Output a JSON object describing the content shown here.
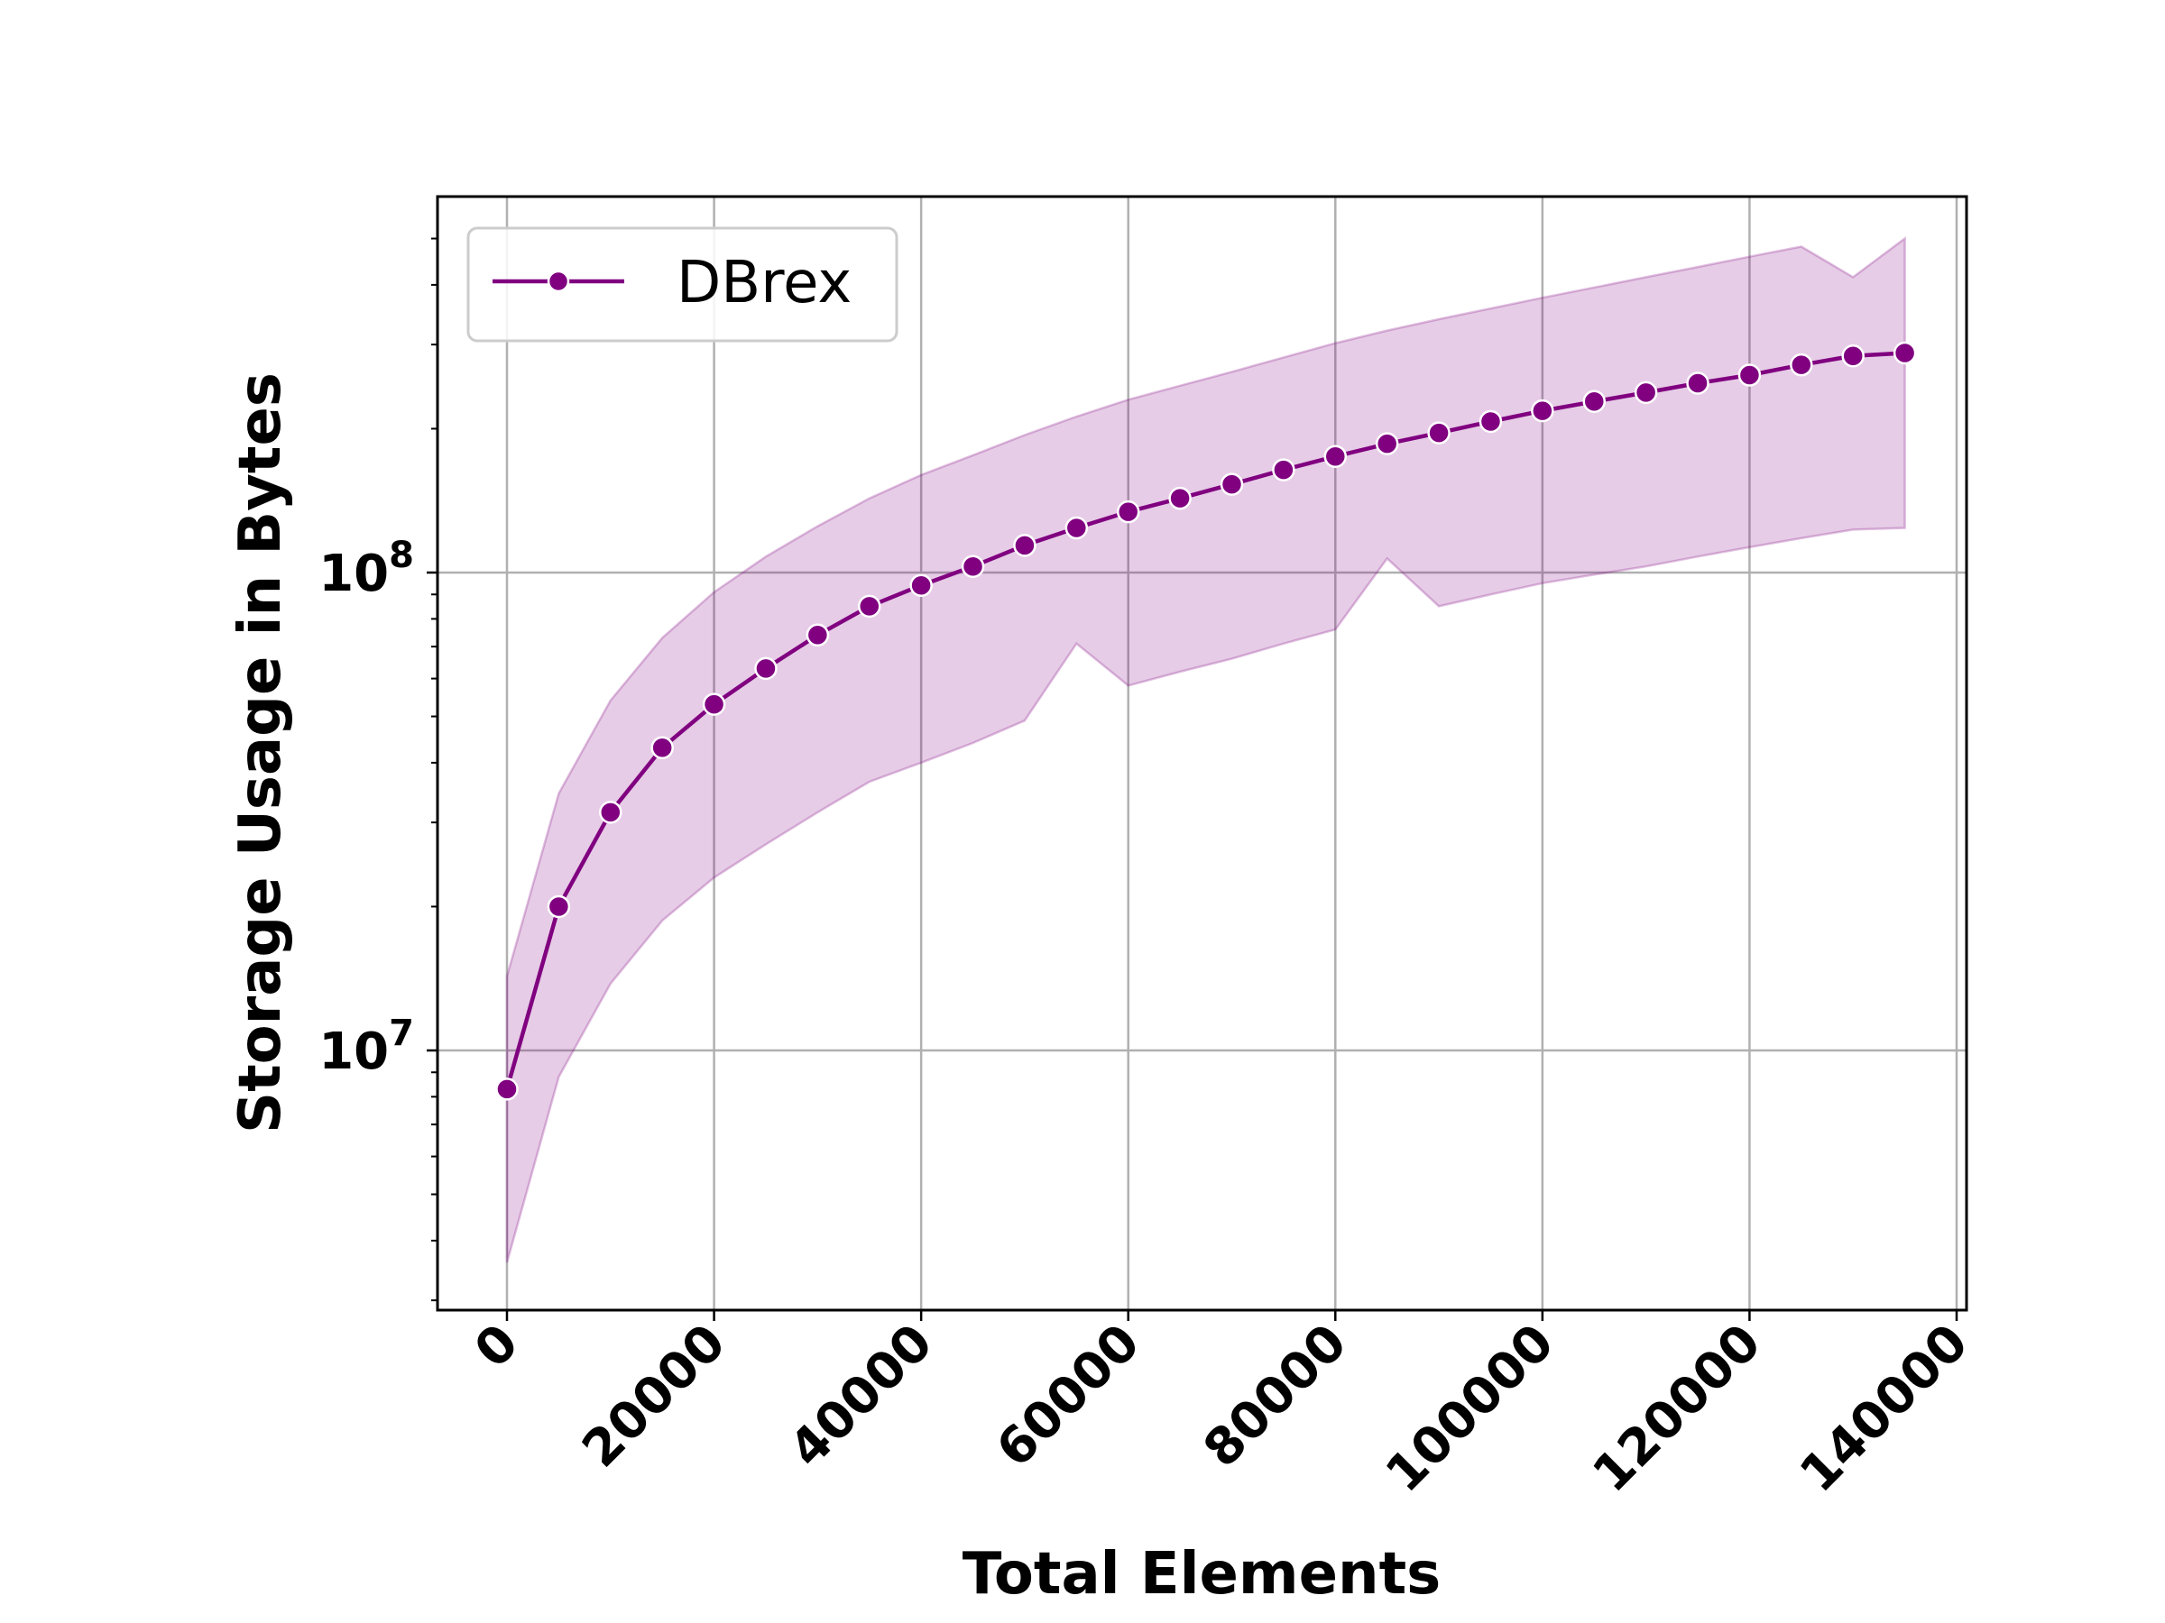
{
  "chart_data": {
    "type": "line",
    "xlabel": "Total Elements",
    "ylabel": "Storage Usage in Bytes",
    "x_scale": "linear",
    "y_scale": "log",
    "xlim": [
      -7000,
      141000
    ],
    "ylim": [
      2800000,
      590000000
    ],
    "grid": true,
    "legend_position": "top-left",
    "x_ticks": [
      0,
      20000,
      40000,
      60000,
      80000,
      100000,
      120000,
      140000
    ],
    "x_tick_labels": [
      "0",
      "20000",
      "40000",
      "60000",
      "80000",
      "100000",
      "120000",
      "140000"
    ],
    "y_major_ticks": [
      10000000,
      100000000
    ],
    "y_tick_labels": [
      {
        "base": "10",
        "exp": "7"
      },
      {
        "base": "10",
        "exp": "8"
      }
    ],
    "colors": {
      "line": "#800080",
      "band": "#800080",
      "grid": "#b0b0b0",
      "marker_edge": "#ffffff"
    },
    "series": [
      {
        "name": "DBrex",
        "x": [
          0,
          5000,
          10000,
          15000,
          20000,
          25000,
          30000,
          35000,
          40000,
          45000,
          50000,
          55000,
          60000,
          65000,
          70000,
          75000,
          80000,
          85000,
          90000,
          95000,
          100000,
          105000,
          110000,
          115000,
          120000,
          125000,
          130000,
          135000
        ],
        "y": [
          8300000,
          20000000,
          31500000,
          43000000,
          53000000,
          63000000,
          74000000,
          85000000,
          94000000,
          103000000,
          114000000,
          124000000,
          134000000,
          143000000,
          153000000,
          164000000,
          175000000,
          186000000,
          196000000,
          207000000,
          218000000,
          228000000,
          238000000,
          249000000,
          259000000,
          272000000,
          284000000,
          288000000
        ],
        "y_lower": [
          3600000,
          8800000,
          13800000,
          18700000,
          23000000,
          27000000,
          31500000,
          36500000,
          40000000,
          44000000,
          49000000,
          71000000,
          58000000,
          62000000,
          66000000,
          71000000,
          76000000,
          107000000,
          85000000,
          90000000,
          95000000,
          99000000,
          103000000,
          108000000,
          113000000,
          118000000,
          123000000,
          124000000
        ],
        "y_upper": [
          14300000,
          34500000,
          54000000,
          73000000,
          91000000,
          108000000,
          125000000,
          143000000,
          160000000,
          176000000,
          194000000,
          212000000,
          230000000,
          246000000,
          263000000,
          282000000,
          302000000,
          321000000,
          339000000,
          357000000,
          376000000,
          395000000,
          415000000,
          436000000,
          458000000,
          481000000,
          415000000,
          500000000
        ]
      }
    ]
  }
}
